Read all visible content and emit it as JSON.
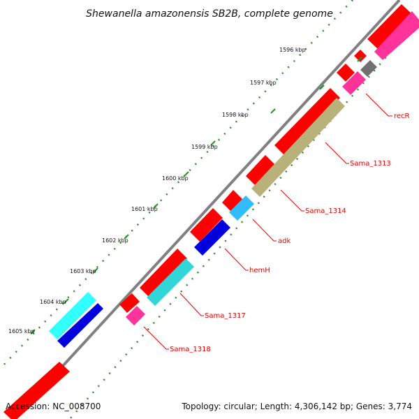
{
  "title": "Shewanella amazonensis SB2B, complete genome",
  "footer": {
    "accession": "Accession: NC_008700",
    "summary": "Topology: circular; Length: 4,306,142 bp; Genes: 3,774"
  },
  "scale_labels": [
    "1596 kbp",
    "1597 kbp",
    "1598 kbp",
    "1599 kbp",
    "1600 kbp",
    "1601 kbp",
    "1602 kbp",
    "1603 kbp",
    "1604 kbp",
    "1605 kbp"
  ],
  "gene_labels": [
    "recR",
    "Sama_1313",
    "Sama_1314",
    "adk",
    "hemH",
    "Sama_1317",
    "Sama_1318"
  ],
  "colors": {
    "backbone": "#808080",
    "cds": "#ff0000",
    "gene_pink": "#ff3399",
    "gene_gray": "#707070",
    "gene_olive": "#b8b27a",
    "gene_cyan": "#33d6d6",
    "gene_skyblue": "#33bbff",
    "gene_blue": "#0000dd",
    "gene_lightcyan": "#33ffff",
    "tick_dots": "#2e8b2e",
    "label_red": "#e60000"
  }
}
